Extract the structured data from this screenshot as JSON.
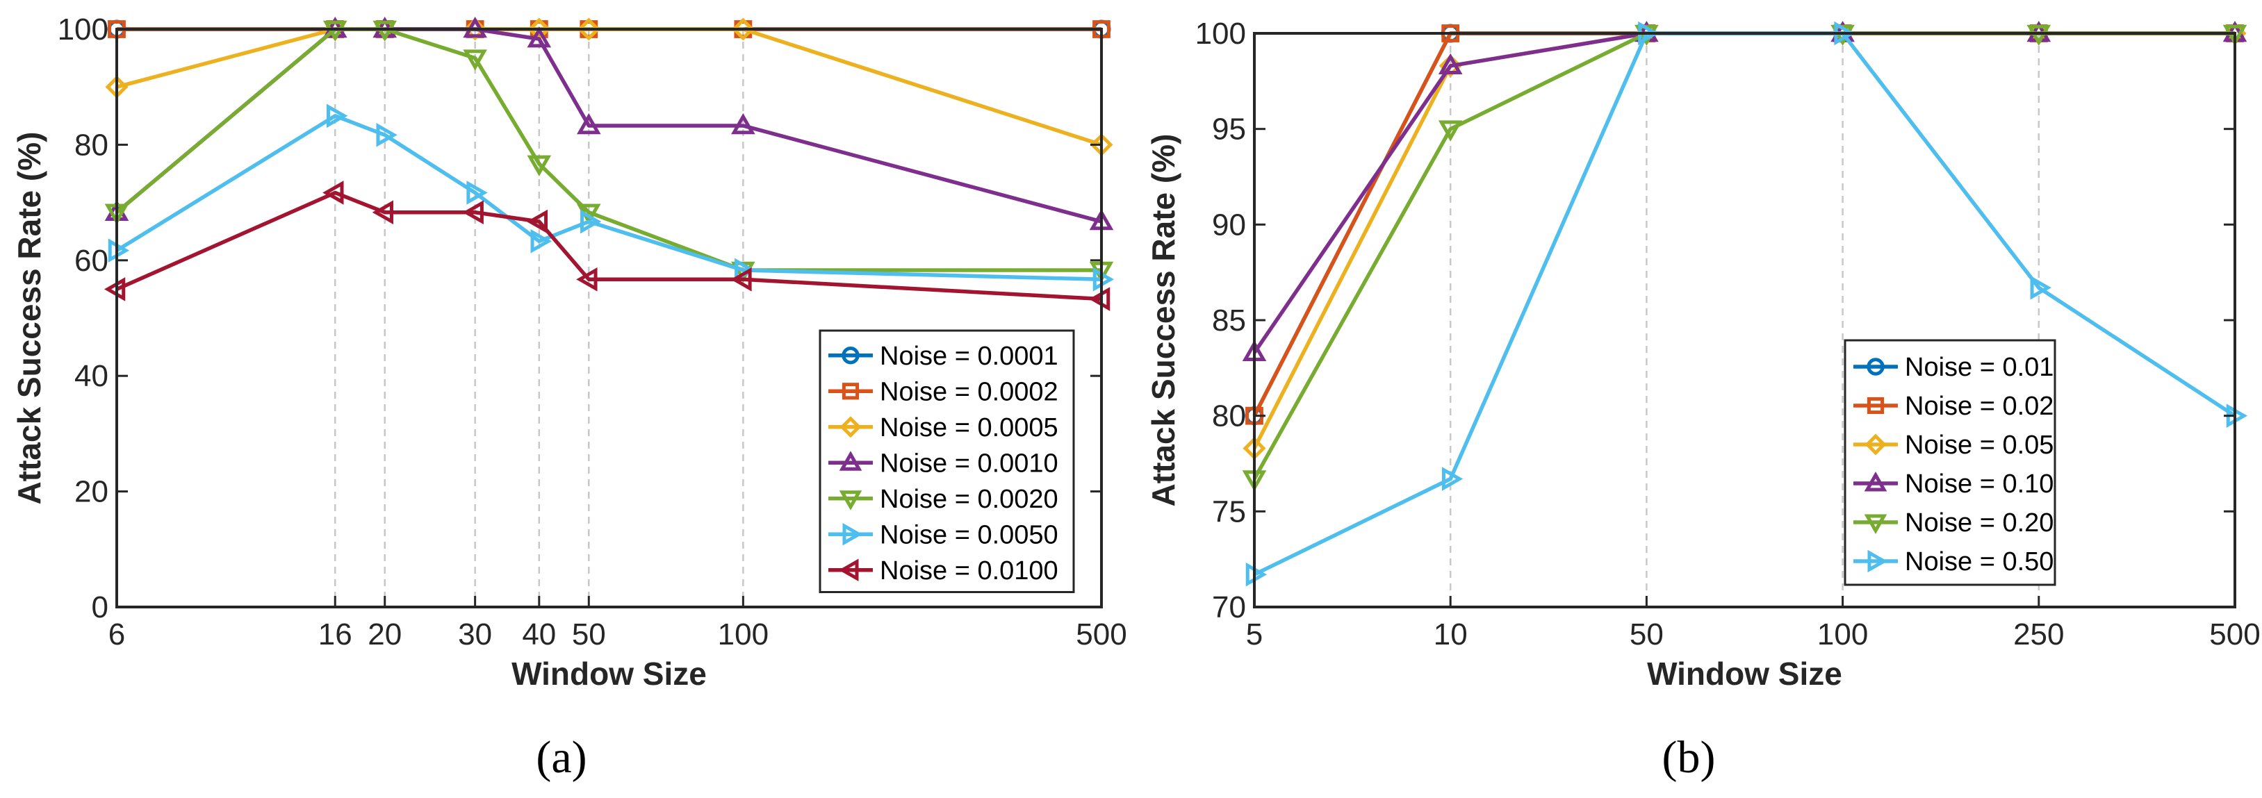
{
  "colors": {
    "blue": "#0072BD",
    "orange": "#D95319",
    "yellow": "#EDB120",
    "purple": "#7E2F8E",
    "green": "#77AC30",
    "cyan": "#4DBEEE",
    "red": "#A2142F"
  },
  "chart_data": [
    {
      "type": "line",
      "caption": "(a)",
      "xlabel": "Window Size",
      "ylabel": "Attack Success Rate (%)",
      "x_scale": "log",
      "x": [
        6,
        16,
        20,
        30,
        40,
        50,
        100,
        500
      ],
      "xtick_labels": [
        "6",
        "16",
        "20",
        "30",
        "40",
        "50",
        "100",
        "500"
      ],
      "xlim": [
        6,
        500
      ],
      "ylim": [
        0,
        100
      ],
      "yticks": [
        0,
        20,
        40,
        60,
        80,
        100
      ],
      "grid": "vertical dashed at x ticks",
      "legend_position": "bottom-right",
      "series": [
        {
          "name": "Noise = 0.0001",
          "marker": "circle",
          "color": "blue",
          "values": [
            100,
            100,
            100,
            100,
            100,
            100,
            100,
            100
          ]
        },
        {
          "name": "Noise = 0.0002",
          "marker": "square",
          "color": "orange",
          "values": [
            100,
            100,
            100,
            100,
            100,
            100,
            100,
            100
          ]
        },
        {
          "name": "Noise = 0.0005",
          "marker": "diamond",
          "color": "yellow",
          "values": [
            90,
            100,
            100,
            100,
            100,
            100,
            100,
            80
          ]
        },
        {
          "name": "Noise = 0.0010",
          "marker": "triangle-up",
          "color": "purple",
          "values": [
            68.3,
            100,
            100,
            100,
            98.3,
            83.3,
            83.3,
            66.7
          ]
        },
        {
          "name": "Noise = 0.0020",
          "marker": "triangle-down",
          "color": "green",
          "values": [
            68.3,
            100,
            100,
            95,
            76.7,
            68.3,
            58.3,
            58.3
          ]
        },
        {
          "name": "Noise = 0.0050",
          "marker": "triangle-right",
          "color": "cyan",
          "values": [
            61.7,
            85,
            81.7,
            71.7,
            63.3,
            66.7,
            58.3,
            56.7
          ]
        },
        {
          "name": "Noise = 0.0100",
          "marker": "triangle-left",
          "color": "red",
          "values": [
            55,
            71.7,
            68.3,
            68.3,
            66.7,
            56.7,
            56.7,
            53.3
          ]
        }
      ]
    },
    {
      "type": "line",
      "caption": "(b)",
      "xlabel": "Window Size",
      "ylabel": "Attack Success Rate (%)",
      "x_scale": "categorical",
      "x": [
        5,
        10,
        50,
        100,
        250,
        500
      ],
      "xtick_labels": [
        "5",
        "10",
        "50",
        "100",
        "250",
        "500"
      ],
      "ylim": [
        70,
        100
      ],
      "yticks": [
        70,
        75,
        80,
        85,
        90,
        95,
        100
      ],
      "grid": "vertical dashed at x ticks",
      "legend_position": "bottom-right",
      "series": [
        {
          "name": "Noise = 0.01",
          "marker": "circle",
          "color": "blue",
          "values": [
            80,
            100,
            100,
            100,
            100,
            100
          ]
        },
        {
          "name": "Noise = 0.02",
          "marker": "square",
          "color": "orange",
          "values": [
            80,
            100,
            100,
            100,
            100,
            100
          ]
        },
        {
          "name": "Noise = 0.05",
          "marker": "diamond",
          "color": "yellow",
          "values": [
            78.3,
            98.3,
            100,
            100,
            100,
            100
          ]
        },
        {
          "name": "Noise = 0.10",
          "marker": "triangle-up",
          "color": "purple",
          "values": [
            83.3,
            98.3,
            100,
            100,
            100,
            100
          ]
        },
        {
          "name": "Noise = 0.20",
          "marker": "triangle-down",
          "color": "green",
          "values": [
            76.7,
            95,
            100,
            100,
            100,
            100
          ]
        },
        {
          "name": "Noise = 0.50",
          "marker": "triangle-right",
          "color": "cyan",
          "values": [
            71.7,
            76.7,
            100,
            100,
            86.7,
            80
          ]
        }
      ]
    }
  ]
}
